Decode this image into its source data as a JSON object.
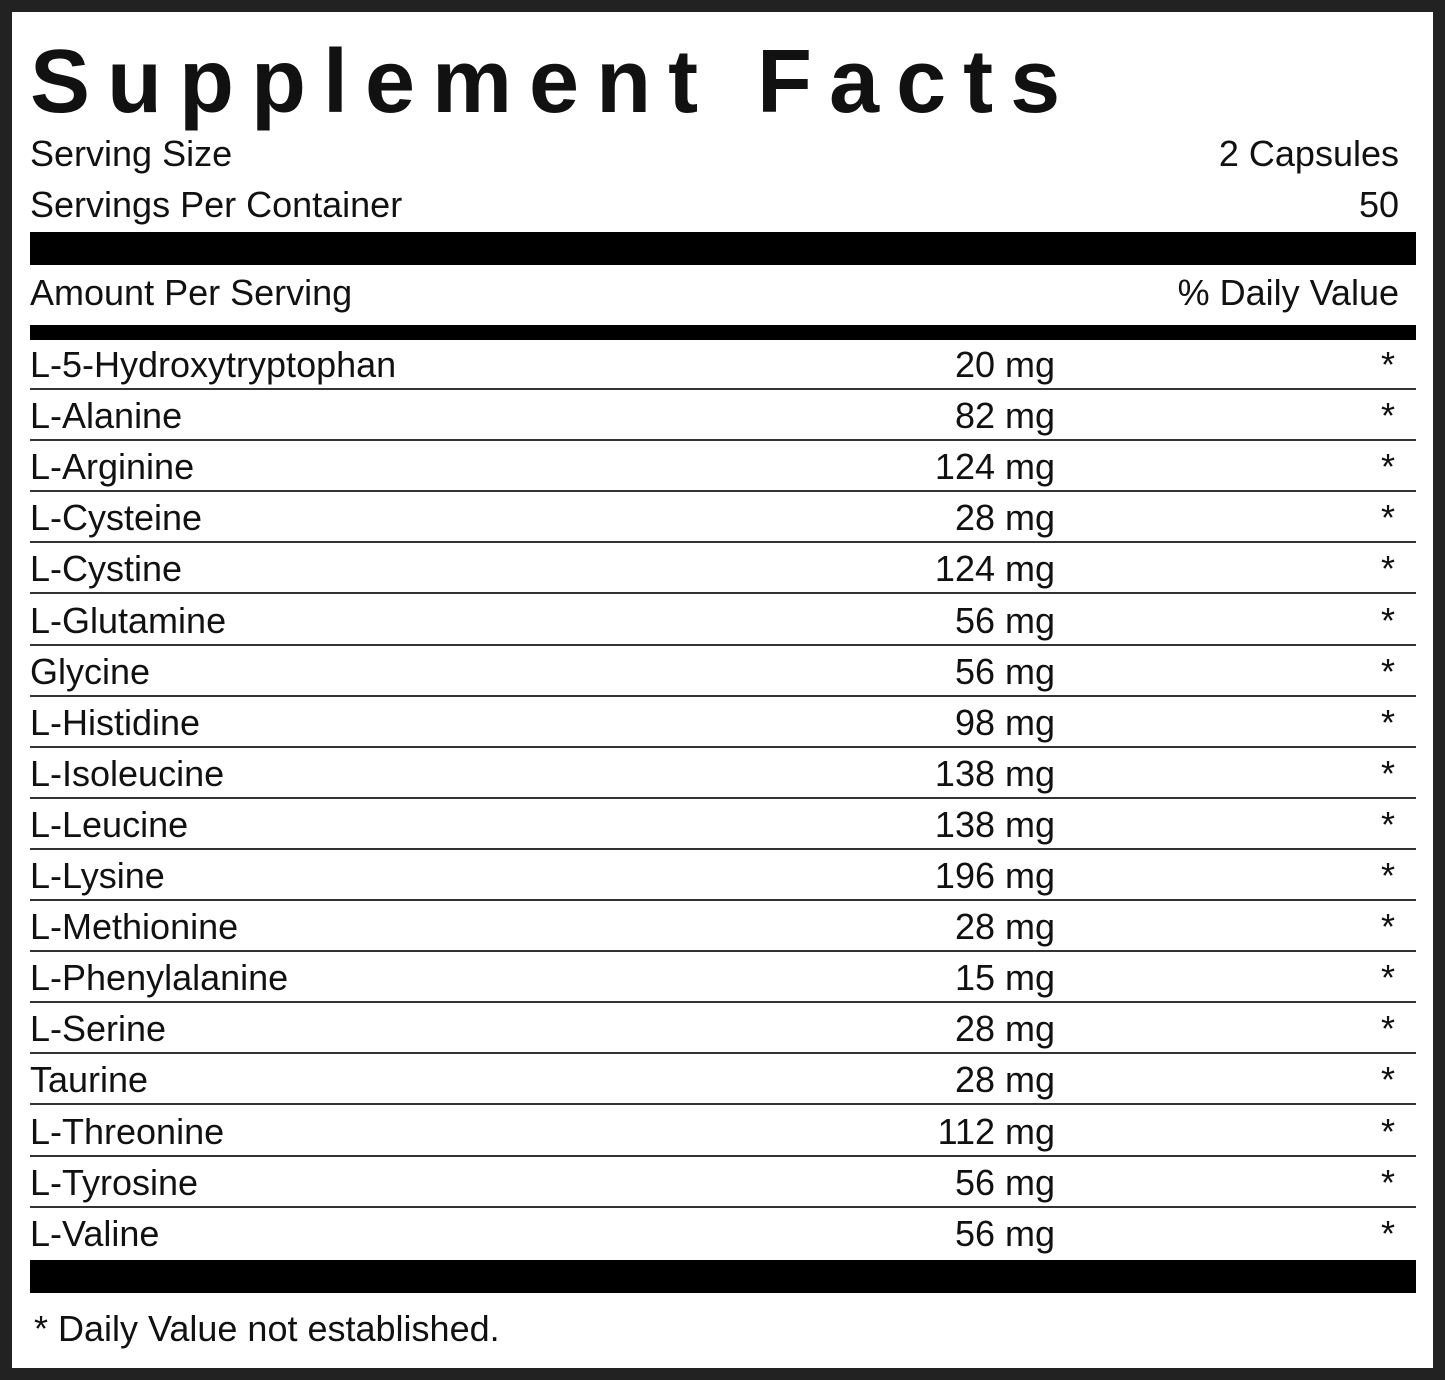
{
  "title": "Supplement Facts",
  "serving": {
    "size_label": "Serving Size",
    "size_value": "2 Capsules",
    "per_container_label": "Servings Per Container",
    "per_container_value": "50"
  },
  "header": {
    "amount": "Amount Per Serving",
    "daily_value": "% Daily Value"
  },
  "rows": [
    [
      "L-5-Hydroxytryptophan",
      "20 mg",
      "*"
    ],
    [
      "L-Alanine",
      "82 mg",
      "*"
    ],
    [
      "L-Arginine",
      "124 mg",
      "*"
    ],
    [
      "L-Cysteine",
      "28 mg",
      "*"
    ],
    [
      "L-Cystine",
      "124 mg",
      "*"
    ],
    [
      "L-Glutamine",
      "56 mg",
      "*"
    ],
    [
      "Glycine",
      "56 mg",
      "*"
    ],
    [
      "L-Histidine",
      "98 mg",
      "*"
    ],
    [
      "L-Isoleucine",
      "138 mg",
      "*"
    ],
    [
      "L-Leucine",
      "138 mg",
      "*"
    ],
    [
      "L-Lysine",
      "196 mg",
      "*"
    ],
    [
      "L-Methionine",
      "28 mg",
      "*"
    ],
    [
      "L-Phenylalanine",
      "15 mg",
      "*"
    ],
    [
      "L-Serine",
      "28 mg",
      "*"
    ],
    [
      "Taurine",
      "28 mg",
      "*"
    ],
    [
      "L-Threonine",
      "112 mg",
      "*"
    ],
    [
      "L-Tyrosine",
      "56 mg",
      "*"
    ],
    [
      "L-Valine",
      "56 mg",
      "*"
    ]
  ],
  "footnote": "* Daily Value not established."
}
